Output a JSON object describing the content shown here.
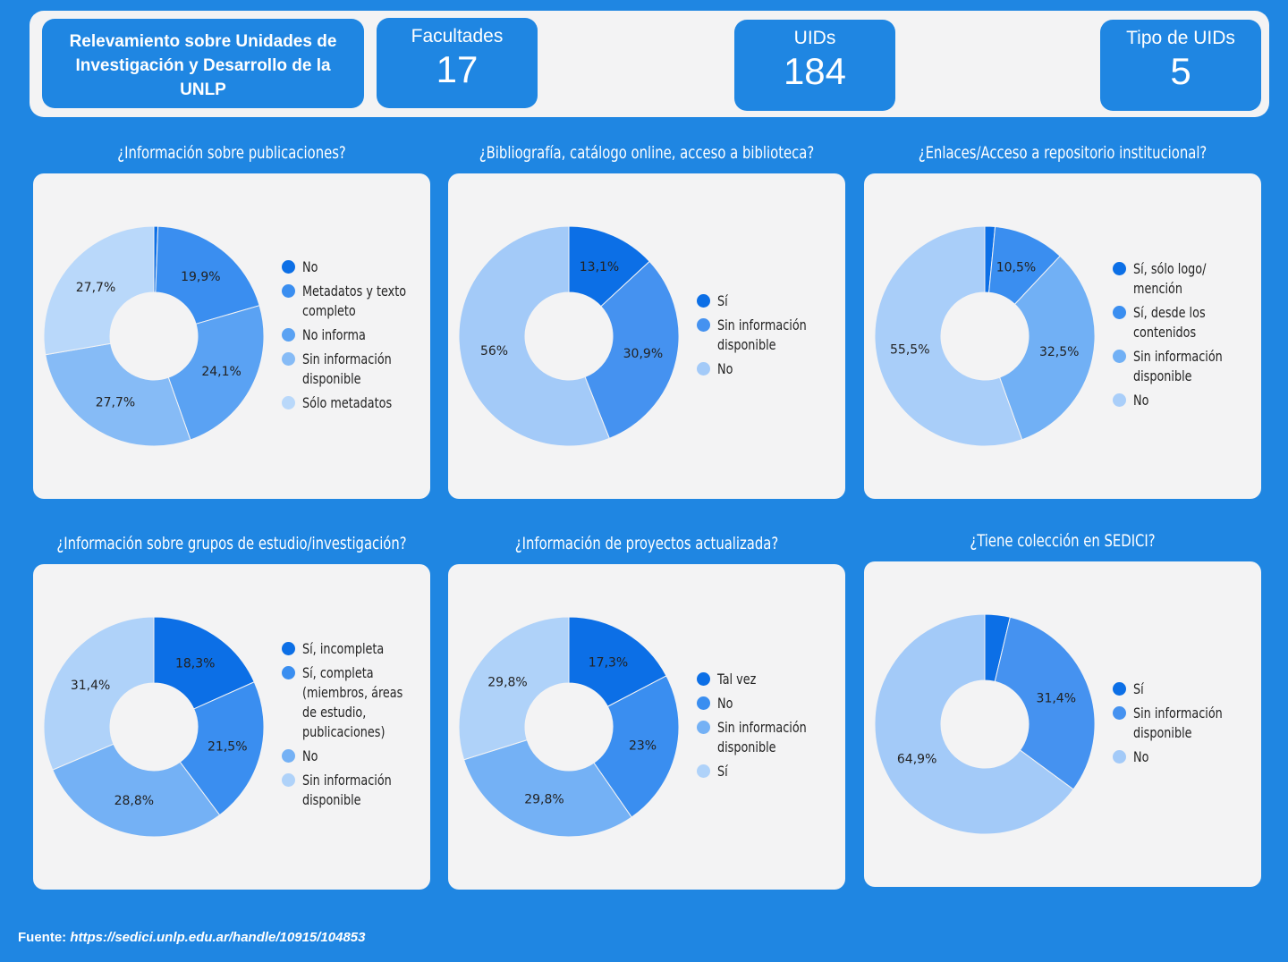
{
  "header": {
    "title": "Relevamiento sobre Unidades de Investigación y Desarrollo de la UNLP",
    "kpis": [
      {
        "label": "Facultades",
        "value": "17"
      },
      {
        "label": "UIDs",
        "value": "184"
      },
      {
        "label": "Tipo de UIDs",
        "value": "5"
      }
    ]
  },
  "footer": {
    "prefix": "Fuente:",
    "url": "https://sedici.unlp.edu.ar/handle/10915/104853"
  },
  "chart_data": [
    {
      "type": "pie",
      "title": "¿Información sobre publicaciones?",
      "labels": [
        "No",
        "Metadatos y texto completo",
        "No informa",
        "Sin información disponible",
        "Sólo metadatos"
      ],
      "values": [
        0.6,
        19.9,
        24.1,
        27.7,
        27.7
      ],
      "display": [
        "",
        "19,9%",
        "24,1%",
        "27,7%",
        "27,7%"
      ],
      "colors": [
        "#0c6fe6",
        "#3a8ef0",
        "#5aa2f3",
        "#86bbf6",
        "#b9d8fa"
      ]
    },
    {
      "type": "pie",
      "title": "¿Bibliografía, catálogo online, acceso a biblioteca?",
      "labels": [
        "Sí",
        "Sin información disponible",
        "No"
      ],
      "values": [
        13.1,
        30.9,
        56
      ],
      "display": [
        "13,1%",
        "30,9%",
        "56%"
      ],
      "colors": [
        "#0c6fe6",
        "#4592f0",
        "#a3caf8"
      ]
    },
    {
      "type": "pie",
      "title": "¿Enlaces/Acceso a repositorio institucional?",
      "labels": [
        "Sí, sólo logo/ mención",
        "Sí, desde los contenidos",
        "Sin información disponible",
        "No"
      ],
      "values": [
        1.5,
        10.5,
        32.5,
        55.5
      ],
      "display": [
        "",
        "10,5%",
        "32,5%",
        "55,5%"
      ],
      "colors": [
        "#0c6fe6",
        "#3a8ef0",
        "#71b0f5",
        "#a9cef9"
      ]
    },
    {
      "type": "pie",
      "title": "¿Información sobre grupos de estudio/investigación?",
      "labels": [
        "Sí, incompleta",
        "Sí, completa (miembros, áreas de estudio, publicaciones)",
        "No",
        "Sin información disponible"
      ],
      "values": [
        18.3,
        21.5,
        28.8,
        31.4
      ],
      "display": [
        "18,3%",
        "21,5%",
        "28,8%",
        "31,4%"
      ],
      "colors": [
        "#0c6fe6",
        "#3a8ef0",
        "#74b1f5",
        "#afd2f9"
      ]
    },
    {
      "type": "pie",
      "title": "¿Información de proyectos actualizada?",
      "labels": [
        "Tal vez",
        "No",
        "Sin información disponible",
        "Sí"
      ],
      "values": [
        17.3,
        23,
        29.8,
        29.8
      ],
      "display": [
        "17,3%",
        "23%",
        "29,8%",
        "29,8%"
      ],
      "colors": [
        "#0c6fe6",
        "#3a8ef0",
        "#74b1f5",
        "#afd2f9"
      ]
    },
    {
      "type": "pie",
      "title": "¿Tiene colección en SEDICI?",
      "labels": [
        "Sí",
        "Sin información disponible",
        "No"
      ],
      "values": [
        3.7,
        31.4,
        64.9
      ],
      "display": [
        "",
        "31,4%",
        "64,9%"
      ],
      "colors": [
        "#0c6fe6",
        "#4592f0",
        "#a3caf8"
      ]
    }
  ]
}
